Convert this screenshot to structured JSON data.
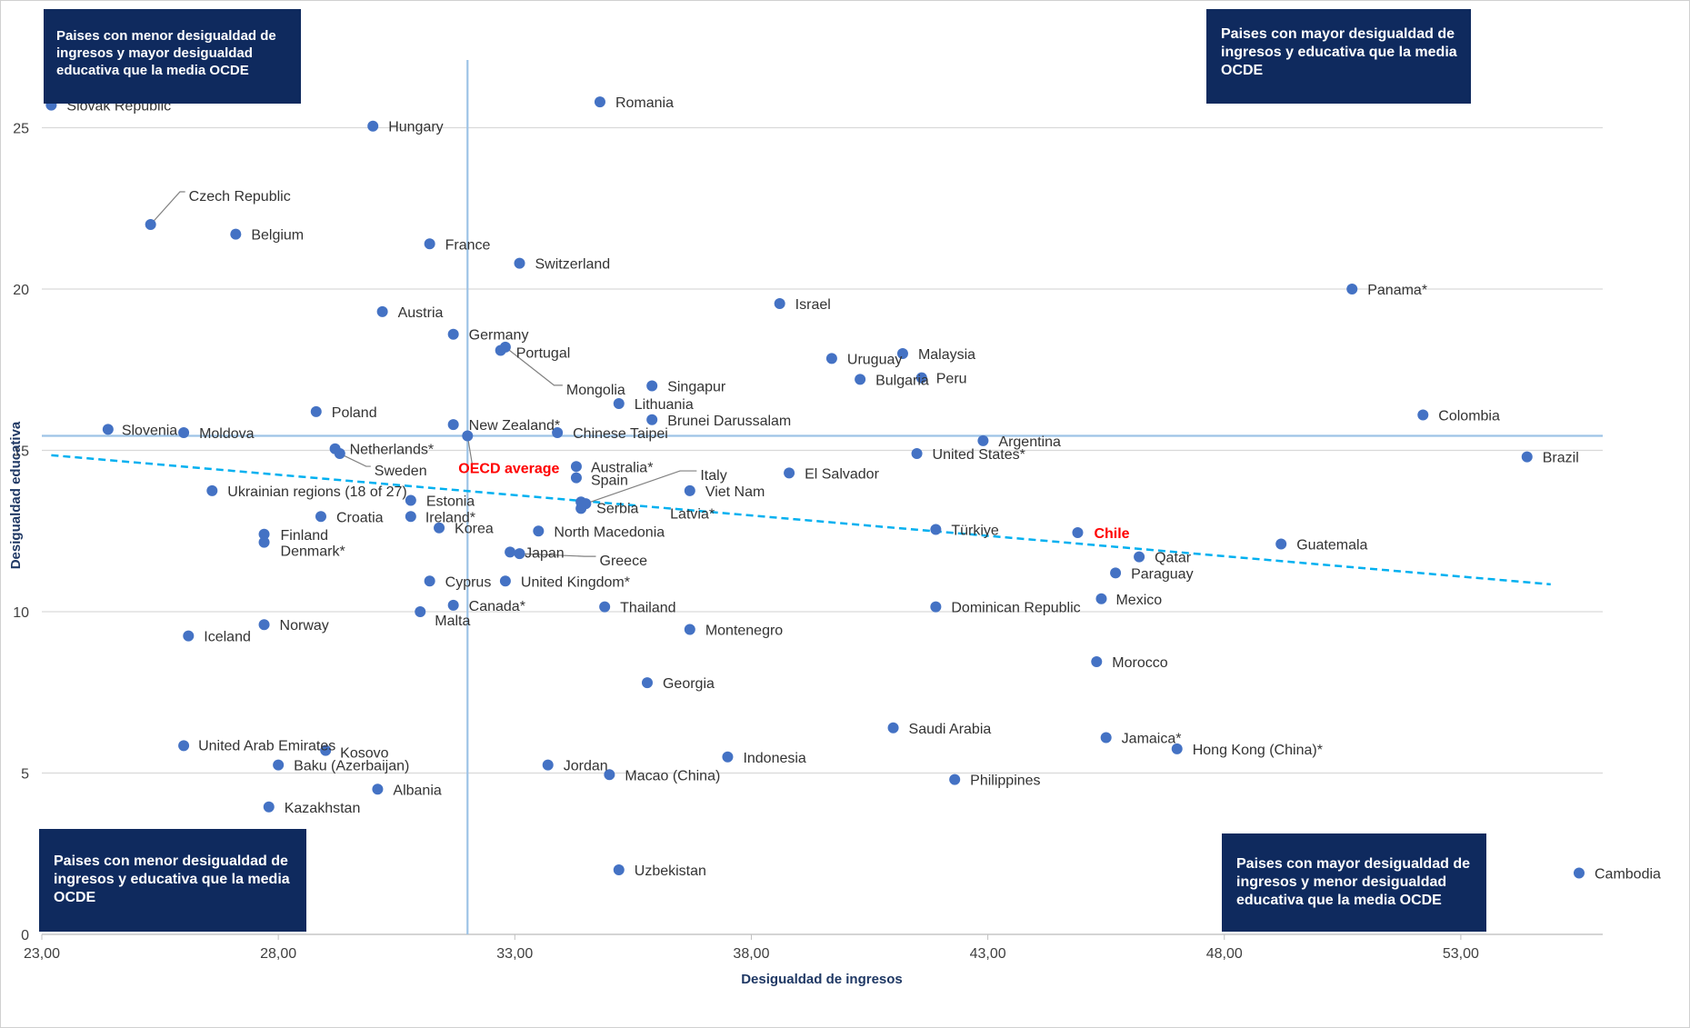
{
  "chart_data": {
    "type": "scatter",
    "xlabel": "Desigualdad de ingresos",
    "ylabel": "Desigualdad educativa",
    "xlim": [
      23,
      56
    ],
    "ylim": [
      0,
      28
    ],
    "x_ticks": [
      "23,00",
      "28,00",
      "33,00",
      "38,00",
      "43,00",
      "48,00",
      "53,00"
    ],
    "x_tick_values": [
      23,
      28,
      33,
      38,
      43,
      48,
      53
    ],
    "y_ticks": [
      "0",
      "5",
      "10",
      "15",
      "20",
      "25"
    ],
    "y_tick_values": [
      0,
      5,
      10,
      15,
      20,
      25
    ],
    "grid": "horizontal",
    "marker_color": "#4472c4",
    "highlight_color": "#ff0000",
    "reference_lines": {
      "x": 32.0,
      "y": 15.45,
      "color": "#9dc3e6"
    },
    "trendline": {
      "x": [
        23.2,
        54.9
      ],
      "y": [
        14.85,
        10.85
      ],
      "color": "#00b0f0",
      "style": "dashed"
    },
    "points": [
      {
        "name": "Slovak Republic",
        "x": 23.2,
        "y": 25.7
      },
      {
        "name": "Hungary",
        "x": 30.0,
        "y": 25.05
      },
      {
        "name": "Romania",
        "x": 34.8,
        "y": 25.8
      },
      {
        "name": "Czech Republic",
        "x": 25.3,
        "y": 22.0
      },
      {
        "name": "Belgium",
        "x": 27.1,
        "y": 21.7
      },
      {
        "name": "France",
        "x": 31.2,
        "y": 21.4
      },
      {
        "name": "Switzerland",
        "x": 33.1,
        "y": 20.8
      },
      {
        "name": "Israel",
        "x": 38.6,
        "y": 19.55
      },
      {
        "name": "Panama*",
        "x": 50.7,
        "y": 20.0
      },
      {
        "name": "Austria",
        "x": 30.2,
        "y": 19.3
      },
      {
        "name": "Germany",
        "x": 31.7,
        "y": 18.6
      },
      {
        "name": "Portugal",
        "x": 32.7,
        "y": 18.1
      },
      {
        "name": "Mongolia",
        "x": 32.8,
        "y": 18.2
      },
      {
        "name": "Uruguay",
        "x": 39.7,
        "y": 17.85
      },
      {
        "name": "Malaysia",
        "x": 41.2,
        "y": 18.0
      },
      {
        "name": "Bulgaria",
        "x": 40.3,
        "y": 17.2
      },
      {
        "name": "Peru",
        "x": 41.6,
        "y": 17.25
      },
      {
        "name": "Singapur",
        "x": 35.9,
        "y": 17.0
      },
      {
        "name": "Lithuania",
        "x": 35.2,
        "y": 16.45
      },
      {
        "name": "Poland",
        "x": 28.8,
        "y": 16.2
      },
      {
        "name": "Brunei Darussalam",
        "x": 35.9,
        "y": 15.95
      },
      {
        "name": "Colombia",
        "x": 52.2,
        "y": 16.1
      },
      {
        "name": "Slovenia",
        "x": 24.4,
        "y": 15.65
      },
      {
        "name": "Moldova",
        "x": 26.0,
        "y": 15.55
      },
      {
        "name": "New Zealand*",
        "x": 31.7,
        "y": 15.8
      },
      {
        "name": "Chinese Taipei",
        "x": 33.9,
        "y": 15.55
      },
      {
        "name": "Argentina",
        "x": 42.9,
        "y": 15.3
      },
      {
        "name": "Netherlands*",
        "x": 29.2,
        "y": 15.05
      },
      {
        "name": "Sweden",
        "x": 29.3,
        "y": 14.9
      },
      {
        "name": "OECD average",
        "x": 32.0,
        "y": 15.45,
        "highlight": true
      },
      {
        "name": "United States*",
        "x": 41.5,
        "y": 14.9
      },
      {
        "name": "Brazil",
        "x": 54.4,
        "y": 14.8
      },
      {
        "name": "Australia*",
        "x": 34.3,
        "y": 14.5
      },
      {
        "name": "Spain",
        "x": 34.3,
        "y": 14.15
      },
      {
        "name": "El Salvador",
        "x": 38.8,
        "y": 14.3
      },
      {
        "name": "Italy",
        "x": 34.5,
        "y": 13.35
      },
      {
        "name": "Viet Nam",
        "x": 36.7,
        "y": 13.75
      },
      {
        "name": "Ukrainian regions (18 of 27)",
        "x": 26.6,
        "y": 13.75
      },
      {
        "name": "Estonia",
        "x": 30.8,
        "y": 13.45
      },
      {
        "name": "Serbia",
        "x": 34.4,
        "y": 13.2
      },
      {
        "name": "Latvia*",
        "x": 34.4,
        "y": 13.4
      },
      {
        "name": "Croatia",
        "x": 28.9,
        "y": 12.95
      },
      {
        "name": "Ireland*",
        "x": 30.8,
        "y": 12.95
      },
      {
        "name": "Korea",
        "x": 31.4,
        "y": 12.6
      },
      {
        "name": "North Macedonia",
        "x": 33.5,
        "y": 12.5
      },
      {
        "name": "Türkiye",
        "x": 41.9,
        "y": 12.55
      },
      {
        "name": "Chile",
        "x": 44.9,
        "y": 12.45,
        "highlight": true
      },
      {
        "name": "Finland",
        "x": 27.7,
        "y": 12.4
      },
      {
        "name": "Denmark*",
        "x": 27.7,
        "y": 12.15
      },
      {
        "name": "Guatemala",
        "x": 49.2,
        "y": 12.1
      },
      {
        "name": "Japan",
        "x": 32.9,
        "y": 11.85
      },
      {
        "name": "Greece",
        "x": 33.1,
        "y": 11.8
      },
      {
        "name": "Qatar",
        "x": 46.2,
        "y": 11.7
      },
      {
        "name": "Paraguay",
        "x": 45.7,
        "y": 11.2
      },
      {
        "name": "Cyprus",
        "x": 31.2,
        "y": 10.95
      },
      {
        "name": "United Kingdom*",
        "x": 32.8,
        "y": 10.95
      },
      {
        "name": "Mexico",
        "x": 45.4,
        "y": 10.4
      },
      {
        "name": "Canada*",
        "x": 31.7,
        "y": 10.2
      },
      {
        "name": "Malta",
        "x": 31.0,
        "y": 10.0
      },
      {
        "name": "Thailand",
        "x": 34.9,
        "y": 10.15
      },
      {
        "name": "Dominican Republic",
        "x": 41.9,
        "y": 10.15
      },
      {
        "name": "Norway",
        "x": 27.7,
        "y": 9.6
      },
      {
        "name": "Iceland",
        "x": 26.1,
        "y": 9.25
      },
      {
        "name": "Montenegro",
        "x": 36.7,
        "y": 9.45
      },
      {
        "name": "Morocco",
        "x": 45.3,
        "y": 8.45
      },
      {
        "name": "Georgia",
        "x": 35.8,
        "y": 7.8
      },
      {
        "name": "Saudi Arabia",
        "x": 41.0,
        "y": 6.4
      },
      {
        "name": "Jamaica*",
        "x": 45.5,
        "y": 6.1
      },
      {
        "name": "Hong Kong (China)*",
        "x": 47.0,
        "y": 5.75
      },
      {
        "name": "United Arab Emirates",
        "x": 26.0,
        "y": 5.85
      },
      {
        "name": "Kosovo",
        "x": 29.0,
        "y": 5.7
      },
      {
        "name": "Indonesia",
        "x": 37.5,
        "y": 5.5
      },
      {
        "name": "Baku (Azerbaijan)",
        "x": 28.0,
        "y": 5.25
      },
      {
        "name": "Jordan",
        "x": 33.7,
        "y": 5.25
      },
      {
        "name": "Macao (China)",
        "x": 35.0,
        "y": 4.95
      },
      {
        "name": "Philippines",
        "x": 42.3,
        "y": 4.8
      },
      {
        "name": "Albania",
        "x": 30.1,
        "y": 4.5
      },
      {
        "name": "Kazakhstan",
        "x": 27.8,
        "y": 3.95
      },
      {
        "name": "Uzbekistan",
        "x": 35.2,
        "y": 2.0
      },
      {
        "name": "Cambodia",
        "x": 55.5,
        "y": 1.9
      }
    ],
    "quadrant_boxes": {
      "top_left": "Paises con menor desigualdad de ingresos y mayor desigualdad educativa que la media OCDE",
      "top_right": "Paises con mayor desigualdad de ingresos y educativa que la media OCDE",
      "bottom_left": "Paises con menor desigualdad de ingresos y educativa que la media OCDE",
      "bottom_right": "Paises con mayor desigualdad de ingresos y menor desigualdad educativa que la media OCDE"
    }
  }
}
